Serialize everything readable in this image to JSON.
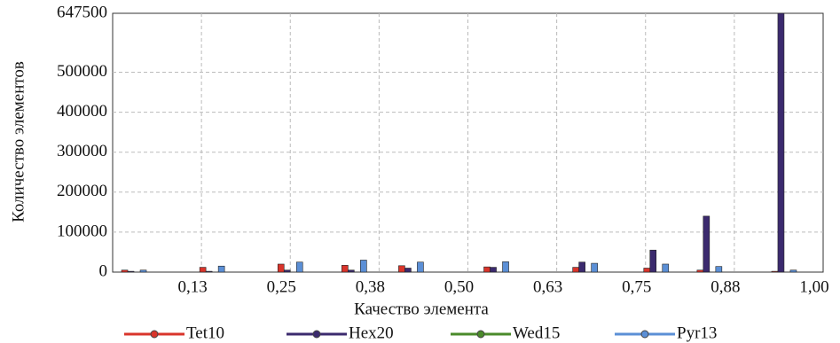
{
  "chart_data": {
    "type": "bar",
    "x_label": "Качество элемента",
    "y_label": "Количество элементов",
    "x": [
      0.03,
      0.14,
      0.25,
      0.34,
      0.42,
      0.54,
      0.665,
      0.765,
      0.84,
      0.945
    ],
    "series": [
      {
        "name": "Tet10",
        "color": "#d9342b",
        "values": [
          5000,
          12000,
          20000,
          17000,
          16000,
          13000,
          12000,
          10000,
          5000,
          2000
        ]
      },
      {
        "name": "Hex20",
        "color": "#3b2a6e",
        "values": [
          2000,
          2000,
          5000,
          5000,
          10000,
          12000,
          25000,
          55000,
          140000,
          647500
        ]
      },
      {
        "name": "Wed15",
        "color": "#4a8a2a",
        "values": [
          0,
          0,
          0,
          0,
          0,
          0,
          0,
          0,
          0,
          0
        ]
      },
      {
        "name": "Pyr13",
        "color": "#5b8fd6",
        "values": [
          5000,
          15000,
          25000,
          30000,
          25000,
          26000,
          22000,
          20000,
          14000,
          5000
        ]
      }
    ],
    "xlim": [
      0,
      1
    ],
    "xticks": [
      {
        "value": 0.125,
        "label": "0,13"
      },
      {
        "value": 0.25,
        "label": "0,25"
      },
      {
        "value": 0.375,
        "label": "0,38"
      },
      {
        "value": 0.5,
        "label": "0,50"
      },
      {
        "value": 0.625,
        "label": "0,63"
      },
      {
        "value": 0.75,
        "label": "0,75"
      },
      {
        "value": 0.875,
        "label": "0,88"
      },
      {
        "value": 1,
        "label": "1,00"
      }
    ],
    "ylim": [
      0,
      647500
    ],
    "yticks": [
      0,
      100000,
      200000,
      300000,
      400000,
      500000,
      647500
    ],
    "grid": true,
    "legend": "bottom"
  }
}
